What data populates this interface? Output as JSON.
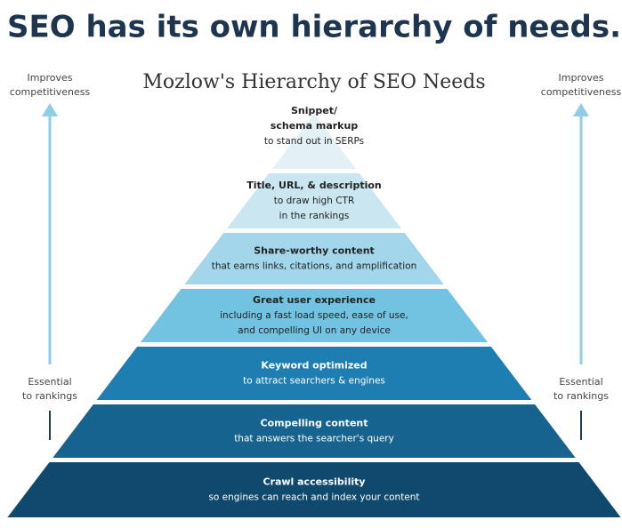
{
  "header": {
    "title": "SEO has its own hierarchy of needs."
  },
  "diagram": {
    "title": "Mozlow's Hierarchy of SEO Needs",
    "left_top_label": [
      "Improves",
      "competitiveness"
    ],
    "right_top_label": [
      "Improves",
      "competitiveness"
    ],
    "left_bottom_label": [
      "Essential",
      "to rankings"
    ],
    "right_bottom_label": [
      "Essential",
      "to rankings"
    ],
    "levels": [
      {
        "title": [
          "Snippet/",
          "schema markup"
        ],
        "description": [
          "to stand out in SERPs"
        ]
      },
      {
        "title": [
          "Title, URL, & description"
        ],
        "description": [
          "to draw high CTR",
          "in the rankings"
        ]
      },
      {
        "title": [
          "Share-worthy content"
        ],
        "description": [
          "that earns links, citations, and amplification"
        ]
      },
      {
        "title": [
          "Great user experience"
        ],
        "description": [
          "including a fast load speed, ease of use,",
          "and compelling UI on any device"
        ]
      },
      {
        "title": [
          "Keyword optimized"
        ],
        "description": [
          "to attract searchers & engines"
        ]
      },
      {
        "title": [
          "Compelling content"
        ],
        "description": [
          "that answers the searcher's query"
        ]
      },
      {
        "title": [
          "Crawl accessibility"
        ],
        "description": [
          "so engines can reach and index your content"
        ]
      }
    ]
  }
}
